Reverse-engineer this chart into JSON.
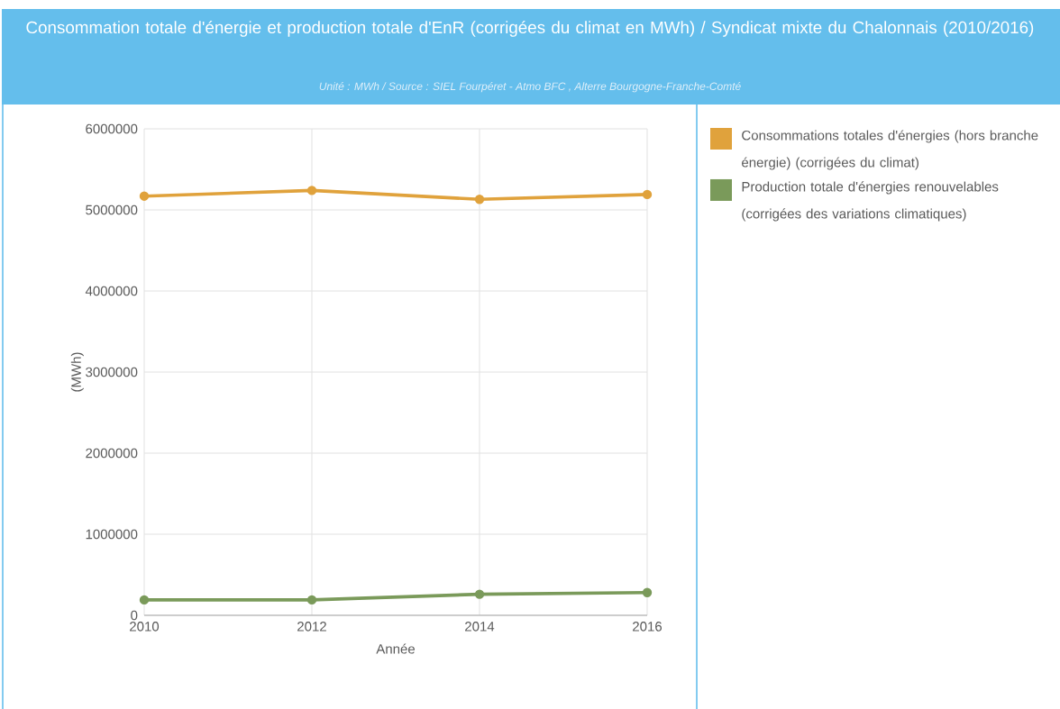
{
  "chart_data": {
    "type": "line",
    "title": "Consommation totale d'énergie et production totale d'EnR (corrigées du climat en MWh) / Syndicat mixte du Chalonnais (2010/2016)",
    "subtitle": "Unité : MWh / Source : SIEL Fourpéret - Atmo BFC , Alterre Bourgogne-Franche-Comté",
    "xlabel": "Année",
    "ylabel": "(MWh)",
    "x": [
      2010,
      2012,
      2014,
      2016
    ],
    "series": [
      {
        "name": "Consommations totales d'énergies (hors branche énergie) (corrigées du climat)",
        "color": "#e0a23c",
        "values": [
          5170000,
          5240000,
          5130000,
          5190000
        ]
      },
      {
        "name": "Production totale d'énergies renouvelables (corrigées des variations climatiques)",
        "color": "#7a9a5a",
        "values": [
          190000,
          190000,
          260000,
          280000
        ]
      }
    ],
    "xlim": [
      2010,
      2016
    ],
    "xticks": [
      2010,
      2012,
      2014,
      2016
    ],
    "ylim": [
      0,
      6000000
    ],
    "yticks": [
      0,
      1000000,
      2000000,
      3000000,
      4000000,
      5000000,
      6000000
    ],
    "grid": true,
    "legend": "right",
    "marker": "circle",
    "line_style": "solid"
  }
}
